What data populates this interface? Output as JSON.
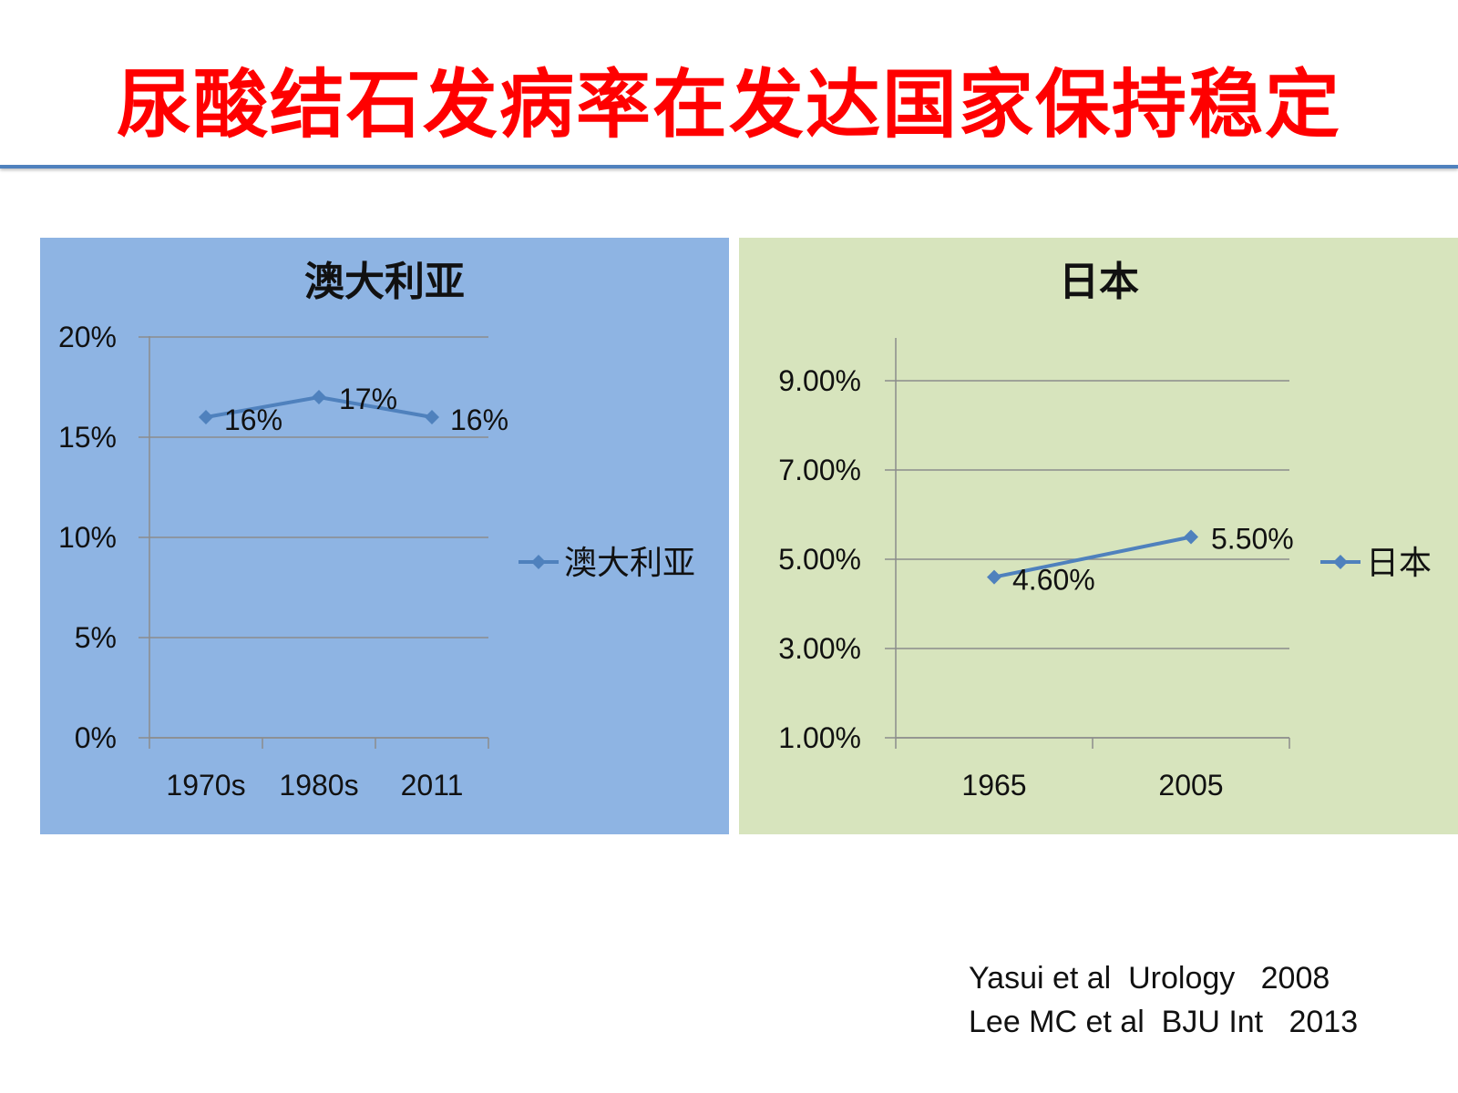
{
  "slide": {
    "title": "尿酸结石发病率在发达国家保持稳定",
    "citations": [
      "Yasui et al  Urology   2008",
      "Lee MC et al  BJU Int   2013"
    ]
  },
  "colors": {
    "title": "#ff0000",
    "rule": "#4f81bd",
    "series": "#4f81bd",
    "panel_au": "#8eb4e3",
    "panel_jp": "#d7e4bd"
  },
  "chart_data": [
    {
      "type": "line",
      "title": "澳大利亚",
      "categories": [
        "1970s",
        "1980s",
        "2011"
      ],
      "series": [
        {
          "name": "澳大利亚",
          "values": [
            16,
            17,
            16
          ]
        }
      ],
      "data_labels": [
        "16%",
        "17%",
        "16%"
      ],
      "yticks": [
        0,
        5,
        10,
        15,
        20
      ],
      "ytick_labels": [
        "0%",
        "5%",
        "10%",
        "15%",
        "20%"
      ],
      "ylim": [
        0,
        20
      ],
      "grid": true,
      "legend": "right"
    },
    {
      "type": "line",
      "title": "日本",
      "categories": [
        "1965",
        "2005"
      ],
      "series": [
        {
          "name": "日本",
          "values": [
            4.6,
            5.5
          ]
        }
      ],
      "data_labels": [
        "4.60%",
        "5.50%"
      ],
      "yticks": [
        1,
        3,
        5,
        7,
        9
      ],
      "ytick_labels": [
        "1.00%",
        "3.00%",
        "5.00%",
        "7.00%",
        "9.00%"
      ],
      "ylim": [
        1,
        10
      ],
      "grid": true,
      "legend": "right"
    }
  ]
}
